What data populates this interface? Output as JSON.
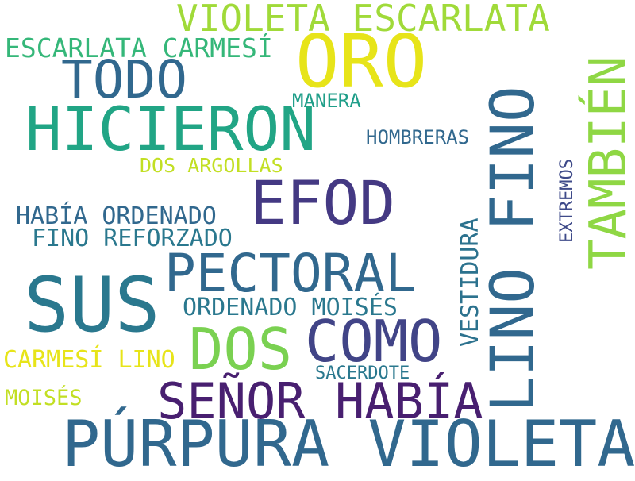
{
  "words": [
    {
      "text": "PÚRPURA VIOLETA",
      "color": "#31688e"
    },
    {
      "text": "SUS",
      "color": "#2a788e"
    },
    {
      "text": "HICIERON",
      "color": "#21a585"
    },
    {
      "text": "ORO",
      "color": "#e7e419"
    },
    {
      "text": "LINO FINO",
      "color": "#31688e"
    },
    {
      "text": "TAMBIÉN",
      "color": "#8fd744"
    },
    {
      "text": "EFOD",
      "color": "#443983"
    },
    {
      "text": "PECTORAL",
      "color": "#31688e"
    },
    {
      "text": "TODO",
      "color": "#31688e"
    },
    {
      "text": "COMO",
      "color": "#414487"
    },
    {
      "text": "SEÑOR HABÍA",
      "color": "#481f70"
    },
    {
      "text": "DOS",
      "color": "#7ad151"
    },
    {
      "text": "VIOLETA ESCARLATA",
      "color": "#a0da39"
    },
    {
      "text": "ESCARLATA CARMESÍ",
      "color": "#35b779"
    },
    {
      "text": "HABÍA ORDENADO",
      "color": "#31688e"
    },
    {
      "text": "FINO REFORZADO",
      "color": "#2a788e"
    },
    {
      "text": "ORDENADO MOISÉS",
      "color": "#2a788e"
    },
    {
      "text": "CARMESÍ LINO",
      "color": "#e7e419"
    },
    {
      "text": "VESTIDURA",
      "color": "#2c728e"
    },
    {
      "text": "DOS ARGOLLAS",
      "color": "#c2df23"
    },
    {
      "text": "HOMBRERAS",
      "color": "#31688e"
    },
    {
      "text": "MANERA",
      "color": "#1f9e89"
    },
    {
      "text": "EXTREMOS",
      "color": "#3e4a89"
    },
    {
      "text": "SACERDOTE",
      "color": "#2a788e"
    },
    {
      "text": "MOISÉS",
      "color": "#c2df23"
    }
  ]
}
